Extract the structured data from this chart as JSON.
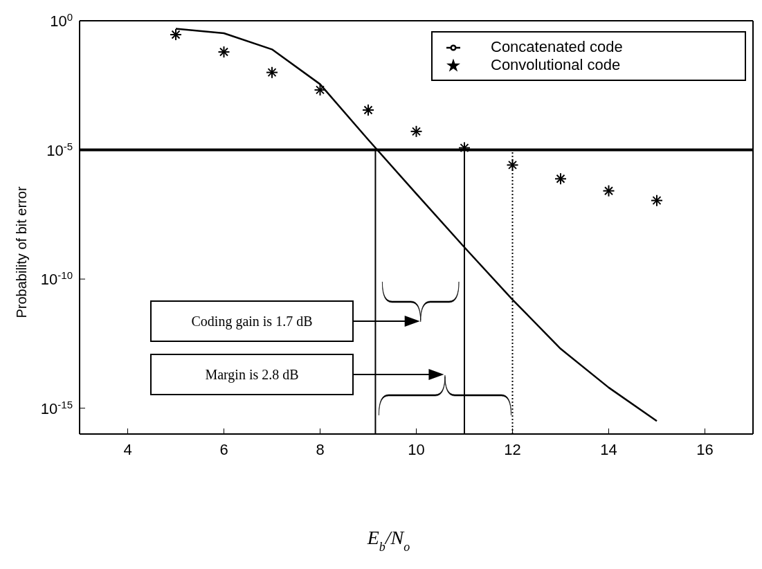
{
  "chart_data": {
    "type": "line",
    "xlabel": "E$_{b}$/N$_{o}$",
    "ylabel": "Probability of bit error",
    "x": [
      5,
      6,
      7,
      8,
      9,
      10,
      11,
      12,
      13,
      14,
      15
    ],
    "series": [
      {
        "name": "Convolutional code",
        "type": "scatter",
        "marker": "cross",
        "color": "#000000",
        "values": [
          0.29,
          0.062,
          0.01,
          0.0021,
          0.00035,
          5.2e-05,
          1.2e-05,
          2.6e-06,
          7.6e-07,
          2.6e-07,
          1.1e-07
        ]
      },
      {
        "name": "Concatenated code",
        "marker": "none",
        "color": "#000000",
        "values": [
          0.49,
          0.33,
          0.078,
          0.0035,
          2.5e-05,
          2e-07,
          1.7e-09,
          1.6e-11,
          2e-13,
          6.3e-15,
          3.2e-16
        ]
      }
    ],
    "log": "y",
    "xlim": [
      3,
      17
    ],
    "xticks": [
      4,
      6,
      8,
      10,
      12,
      14,
      16
    ],
    "ylim": [
      1e-16,
      1
    ],
    "yticks": [
      {
        "value": 1,
        "label": "10$^{0}$"
      },
      {
        "value": 1e-05,
        "label": "10$^{-5}$"
      },
      {
        "value": 1e-10,
        "label": "10$^{-10}$"
      },
      {
        "value": 1e-15,
        "label": "10$^{-15}$"
      }
    ],
    "ref_lines": [
      {
        "axis": "y",
        "value": 1e-05,
        "color": "#000000"
      },
      {
        "axis": "x",
        "value": 9.15,
        "color": "#000000",
        "line_style": "solid"
      },
      {
        "axis": "x",
        "value": 11,
        "color": "#000000",
        "line_style": "solid"
      },
      {
        "axis": "x",
        "value": 12,
        "color": "#000000",
        "line_style": "dotted"
      }
    ],
    "annotations": [
      "Coding gain is 1.7 dB",
      "Margin is 2.8 dB"
    ],
    "legend": "top right",
    "grid": false
  }
}
